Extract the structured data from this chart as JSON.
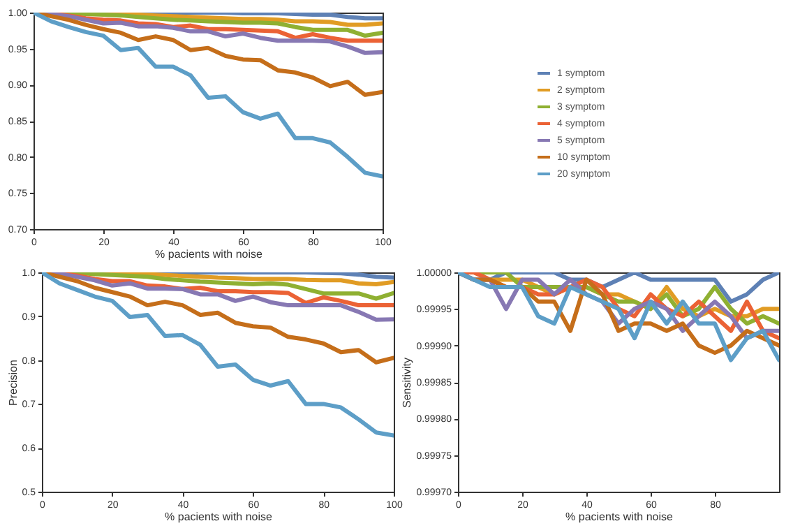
{
  "chart_data": [
    {
      "type": "line",
      "xlabel": "% pacients with noise",
      "x": [
        0,
        5,
        10,
        15,
        20,
        25,
        30,
        35,
        40,
        45,
        50,
        55,
        60,
        65,
        70,
        75,
        80,
        85,
        90,
        95,
        100
      ],
      "xlim": [
        0,
        100
      ],
      "xticks": [
        0,
        20,
        40,
        60,
        80,
        100
      ],
      "ylim": [
        0.7,
        1.0
      ],
      "yticks": [
        {
          "value": 0.7,
          "label": "0.70"
        },
        {
          "value": 0.75,
          "label": "0.75"
        },
        {
          "value": 0.8,
          "label": "0.80"
        },
        {
          "value": 0.85,
          "label": "0.85"
        },
        {
          "value": 0.9,
          "label": "0.90"
        },
        {
          "value": 0.95,
          "label": "0.95"
        },
        {
          "value": 1.0,
          "label": "1.00"
        }
      ],
      "legend": "right",
      "grid": false,
      "series": [
        {
          "name": "1 symptom",
          "color": "#5e81b5",
          "values": [
            1,
            1,
            1,
            1,
            1,
            1,
            1,
            1,
            1,
            1,
            1,
            1,
            0.999,
            0.999,
            0.999,
            0.998,
            0.997,
            0.997,
            0.994,
            0.992,
            0.992
          ]
        },
        {
          "name": "2 symptom",
          "color": "#e19c24",
          "values": [
            1,
            1,
            1,
            1,
            0.999,
            0.998,
            0.997,
            0.996,
            0.995,
            0.994,
            0.993,
            0.992,
            0.991,
            0.991,
            0.99,
            0.988,
            0.988,
            0.987,
            0.983,
            0.983,
            0.985
          ]
        },
        {
          "name": "3 symptom",
          "color": "#8fb032",
          "values": [
            1,
            1,
            0.999,
            0.998,
            0.997,
            0.996,
            0.994,
            0.992,
            0.99,
            0.989,
            0.988,
            0.987,
            0.986,
            0.986,
            0.985,
            0.98,
            0.976,
            0.976,
            0.976,
            0.968,
            0.972
          ]
        },
        {
          "name": "4 symptom",
          "color": "#eb6235",
          "values": [
            1,
            0.999,
            0.996,
            0.992,
            0.99,
            0.989,
            0.985,
            0.984,
            0.98,
            0.982,
            0.977,
            0.977,
            0.976,
            0.975,
            0.974,
            0.965,
            0.97,
            0.965,
            0.961,
            0.961,
            0.961
          ]
        },
        {
          "name": "5 symptom",
          "color": "#8778b3",
          "values": [
            1,
            0.998,
            0.995,
            0.99,
            0.985,
            0.986,
            0.981,
            0.981,
            0.979,
            0.974,
            0.974,
            0.967,
            0.971,
            0.965,
            0.961,
            0.961,
            0.961,
            0.96,
            0.953,
            0.944,
            0.945
          ]
        },
        {
          "name": "10 symptom",
          "color": "#c56e1a",
          "values": [
            1,
            0.995,
            0.99,
            0.983,
            0.977,
            0.972,
            0.962,
            0.967,
            0.962,
            0.948,
            0.951,
            0.94,
            0.935,
            0.934,
            0.92,
            0.917,
            0.91,
            0.898,
            0.904,
            0.886,
            0.89
          ]
        },
        {
          "name": "20 symptom",
          "color": "#5d9ec7",
          "values": [
            1,
            0.988,
            0.98,
            0.973,
            0.968,
            0.948,
            0.951,
            0.925,
            0.925,
            0.913,
            0.882,
            0.884,
            0.862,
            0.853,
            0.86,
            0.826,
            0.826,
            0.82,
            0.8,
            0.778,
            0.773
          ]
        }
      ]
    },
    {
      "type": "line",
      "xlabel": "% pacients with noise",
      "ylabel": "Precision",
      "x": [
        0,
        5,
        10,
        15,
        20,
        25,
        30,
        35,
        40,
        45,
        50,
        55,
        60,
        65,
        70,
        75,
        80,
        85,
        90,
        95,
        100
      ],
      "xlim": [
        0,
        100
      ],
      "xticks": [
        0,
        20,
        40,
        60,
        80,
        100
      ],
      "ylim": [
        0.5,
        1.0
      ],
      "yticks": [
        0.5,
        0.6,
        0.7,
        0.8,
        0.9,
        {
          "value": 1.0,
          "label": "1.0"
        }
      ],
      "grid": false,
      "series": [
        {
          "color": "#5e81b5",
          "values": [
            1,
            1,
            1,
            1,
            1,
            1,
            1,
            1,
            1,
            1,
            1,
            1,
            1,
            1,
            1,
            1,
            0.999,
            0.998,
            0.995,
            0.99,
            0.988
          ]
        },
        {
          "color": "#e19c24",
          "values": [
            1,
            1,
            1,
            1,
            0.999,
            0.998,
            0.996,
            0.994,
            0.992,
            0.99,
            0.988,
            0.987,
            0.985,
            0.985,
            0.985,
            0.983,
            0.982,
            0.982,
            0.975,
            0.973,
            0.978
          ]
        },
        {
          "color": "#8fb032",
          "values": [
            1,
            1,
            0.999,
            0.996,
            0.994,
            0.992,
            0.99,
            0.985,
            0.982,
            0.979,
            0.977,
            0.975,
            0.973,
            0.975,
            0.972,
            0.962,
            0.952,
            0.952,
            0.952,
            0.94,
            0.953
          ]
        },
        {
          "color": "#eb6235",
          "values": [
            1,
            0.998,
            0.993,
            0.985,
            0.98,
            0.98,
            0.97,
            0.968,
            0.962,
            0.965,
            0.957,
            0.957,
            0.955,
            0.955,
            0.953,
            0.93,
            0.943,
            0.935,
            0.925,
            0.925,
            0.925
          ]
        },
        {
          "color": "#8778b3",
          "values": [
            1,
            0.997,
            0.99,
            0.982,
            0.97,
            0.975,
            0.963,
            0.963,
            0.962,
            0.95,
            0.95,
            0.935,
            0.945,
            0.932,
            0.925,
            0.925,
            0.925,
            0.925,
            0.91,
            0.892,
            0.893
          ]
        },
        {
          "color": "#c56e1a",
          "values": [
            1,
            0.99,
            0.98,
            0.965,
            0.955,
            0.945,
            0.925,
            0.933,
            0.925,
            0.903,
            0.908,
            0.885,
            0.877,
            0.874,
            0.853,
            0.847,
            0.838,
            0.818,
            0.823,
            0.795,
            0.805
          ]
        },
        {
          "color": "#5d9ec7",
          "values": [
            1,
            0.975,
            0.96,
            0.945,
            0.935,
            0.898,
            0.903,
            0.855,
            0.857,
            0.835,
            0.785,
            0.79,
            0.755,
            0.742,
            0.752,
            0.7,
            0.7,
            0.692,
            0.665,
            0.635,
            0.628
          ]
        }
      ]
    },
    {
      "type": "line",
      "xlabel": "% pacients with noise",
      "ylabel": "Sensitivity",
      "x": [
        0,
        5,
        10,
        15,
        20,
        25,
        30,
        35,
        40,
        45,
        50,
        55,
        60,
        65,
        70,
        75,
        80,
        85,
        90,
        95,
        100
      ],
      "xlim": [
        0,
        100
      ],
      "xticks": [
        0,
        20,
        40,
        60,
        80
      ],
      "ylim": [
        0.9997,
        1.0
      ],
      "yticks": [
        {
          "value": 0.9997,
          "label": "0.99970"
        },
        {
          "value": 0.99975,
          "label": "0.99975"
        },
        {
          "value": 0.9998,
          "label": "0.99980"
        },
        {
          "value": 0.99985,
          "label": "0.99985"
        },
        {
          "value": 0.9999,
          "label": "0.99990"
        },
        {
          "value": 0.99995,
          "label": "0.99995"
        },
        {
          "value": 1.0,
          "label": "1.00000"
        }
      ],
      "grid": false,
      "series": [
        {
          "color": "#5e81b5",
          "values": [
            1,
            0.99999,
            0.99999,
            1,
            1,
            1,
            1,
            0.99999,
            0.99999,
            0.99998,
            0.99999,
            1,
            0.99999,
            0.99999,
            0.99999,
            0.99999,
            0.99999,
            0.99996,
            0.99997,
            0.99999,
            1
          ]
        },
        {
          "color": "#e19c24",
          "values": [
            1,
            1,
            0.99999,
            0.99999,
            0.99999,
            0.99998,
            0.99997,
            0.99998,
            0.99998,
            0.99997,
            0.99997,
            0.99996,
            0.99995,
            0.99998,
            0.99995,
            0.99994,
            0.99995,
            0.99994,
            0.99994,
            0.99995,
            0.99995
          ]
        },
        {
          "color": "#8fb032",
          "values": [
            1,
            1,
            1,
            1,
            0.99998,
            0.99998,
            0.99998,
            0.99998,
            0.99998,
            0.99997,
            0.99996,
            0.99996,
            0.99995,
            0.99997,
            0.99994,
            0.99995,
            0.99998,
            0.99995,
            0.99993,
            0.99994,
            0.99993
          ]
        },
        {
          "color": "#eb6235",
          "values": [
            1,
            1,
            0.99999,
            0.99998,
            0.99998,
            0.99997,
            0.99997,
            0.99998,
            0.99999,
            0.99998,
            0.99995,
            0.99994,
            0.99997,
            0.99995,
            0.99994,
            0.99996,
            0.99994,
            0.99992,
            0.99996,
            0.99992,
            0.99991
          ]
        },
        {
          "color": "#8778b3",
          "values": [
            1,
            0.99999,
            0.99999,
            0.99995,
            0.99999,
            0.99999,
            0.99997,
            0.99999,
            0.99997,
            0.99996,
            0.99993,
            0.99995,
            0.99996,
            0.99995,
            0.99992,
            0.99994,
            0.99996,
            0.99994,
            0.99991,
            0.99992,
            0.99992
          ]
        },
        {
          "color": "#c56e1a",
          "values": [
            1,
            0.99999,
            0.99999,
            0.99998,
            0.99998,
            0.99996,
            0.99996,
            0.99992,
            0.99999,
            0.99997,
            0.99992,
            0.99993,
            0.99993,
            0.99992,
            0.99993,
            0.9999,
            0.99989,
            0.9999,
            0.99992,
            0.99991,
            0.9999
          ]
        },
        {
          "color": "#5d9ec7",
          "values": [
            1,
            0.99999,
            0.99998,
            0.99998,
            0.99998,
            0.99994,
            0.99993,
            0.99998,
            0.99997,
            0.99996,
            0.99995,
            0.99991,
            0.99996,
            0.99993,
            0.99996,
            0.99993,
            0.99993,
            0.99988,
            0.99991,
            0.99992,
            0.99988
          ]
        }
      ]
    }
  ]
}
